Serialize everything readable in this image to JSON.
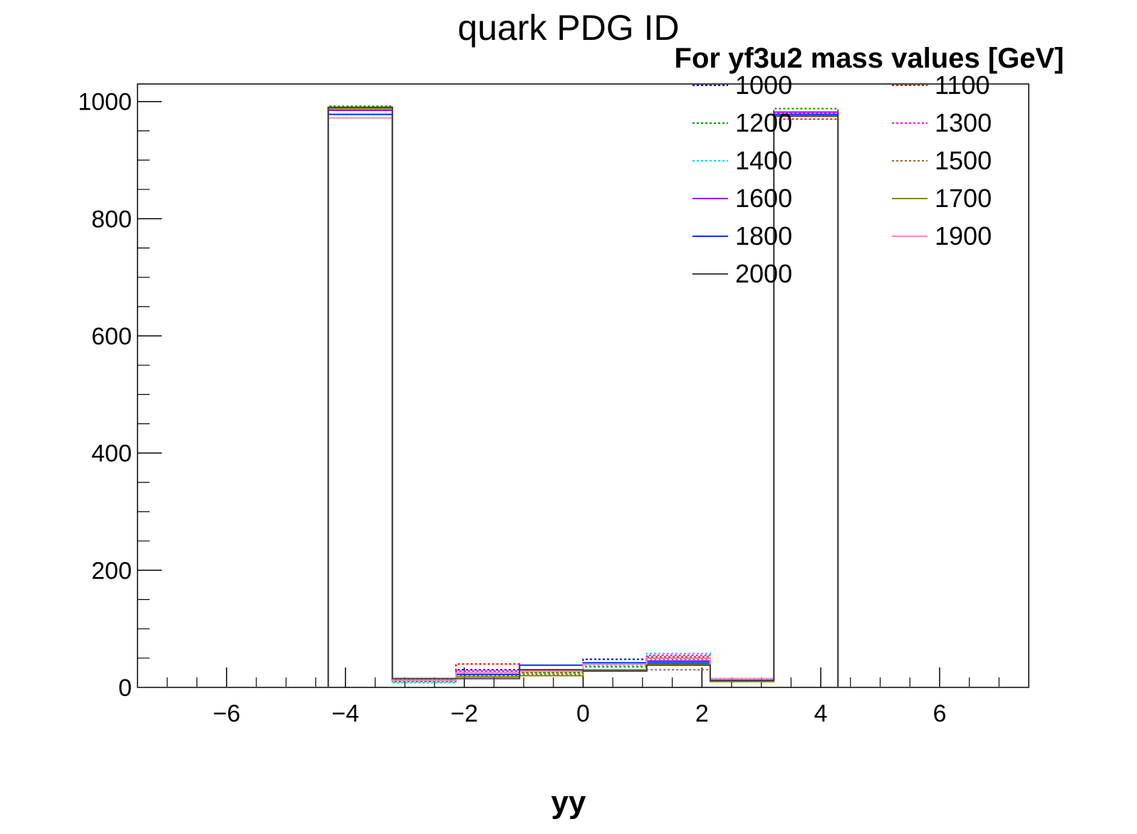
{
  "chart_data": {
    "type": "line",
    "title": "quark PDG ID",
    "xlabel": "yy",
    "ylabel": "",
    "xlim": [
      -7.5,
      7.5
    ],
    "ylim": [
      0,
      1030
    ],
    "grid": false,
    "legend_title": "For yf3u2 mass values [GeV]",
    "legend_placement": "top-right",
    "x_ticks": [
      "-6",
      "-4",
      "-2",
      "0",
      "2",
      "4",
      "6"
    ],
    "x_tick_values": [
      -6,
      -4,
      -2,
      0,
      2,
      4,
      6
    ],
    "y_ticks": [
      "0",
      "200",
      "400",
      "600",
      "800",
      "1000"
    ],
    "y_tick_values": [
      0,
      200,
      400,
      600,
      800,
      1000
    ],
    "bin_edges": [
      -7.5,
      -6.43,
      -5.36,
      -4.29,
      -3.21,
      -2.14,
      -1.07,
      0,
      1.07,
      2.14,
      3.21,
      4.29,
      5.36,
      6.43,
      7.5
    ],
    "series": [
      {
        "name": "1000",
        "color": "#0000cc",
        "style": "dotted",
        "values": [
          0,
          0,
          0,
          985,
          12,
          30,
          28,
          48,
          50,
          12,
          975,
          0,
          0,
          0
        ]
      },
      {
        "name": "1100",
        "color": "#ff0000",
        "style": "dotted",
        "values": [
          0,
          0,
          0,
          990,
          15,
          40,
          25,
          40,
          52,
          15,
          970,
          0,
          0,
          0
        ]
      },
      {
        "name": "1200",
        "color": "#009900",
        "style": "dotted",
        "values": [
          0,
          0,
          0,
          992,
          10,
          25,
          25,
          35,
          48,
          12,
          988,
          0,
          0,
          0
        ]
      },
      {
        "name": "1300",
        "color": "#ff00ff",
        "style": "dotted",
        "values": [
          0,
          0,
          0,
          988,
          12,
          28,
          30,
          42,
          55,
          15,
          980,
          0,
          0,
          0
        ]
      },
      {
        "name": "1400",
        "color": "#00dddd",
        "style": "dotted",
        "values": [
          0,
          0,
          0,
          978,
          8,
          22,
          30,
          38,
          58,
          12,
          982,
          0,
          0,
          0
        ]
      },
      {
        "name": "1500",
        "color": "#996633",
        "style": "dotted",
        "values": [
          0,
          0,
          0,
          990,
          14,
          20,
          22,
          30,
          30,
          10,
          975,
          0,
          0,
          0
        ]
      },
      {
        "name": "1600",
        "color": "#9900ff",
        "style": "solid",
        "values": [
          0,
          0,
          0,
          985,
          12,
          25,
          30,
          40,
          45,
          12,
          982,
          0,
          0,
          0
        ]
      },
      {
        "name": "1700",
        "color": "#888800",
        "style": "solid",
        "values": [
          0,
          0,
          0,
          988,
          15,
          18,
          20,
          30,
          40,
          10,
          978,
          0,
          0,
          0
        ]
      },
      {
        "name": "1800",
        "color": "#0033ff",
        "style": "solid",
        "values": [
          0,
          0,
          0,
          978,
          12,
          22,
          38,
          42,
          42,
          12,
          978,
          0,
          0,
          0
        ]
      },
      {
        "name": "1900",
        "color": "#ff88bb",
        "style": "solid",
        "values": [
          0,
          0,
          0,
          972,
          12,
          25,
          28,
          40,
          50,
          15,
          975,
          0,
          0,
          0
        ]
      },
      {
        "name": "2000",
        "color": "#444444",
        "style": "solid",
        "values": [
          0,
          0,
          0,
          990,
          15,
          15,
          30,
          28,
          38,
          12,
          975,
          0,
          0,
          0
        ]
      }
    ]
  }
}
